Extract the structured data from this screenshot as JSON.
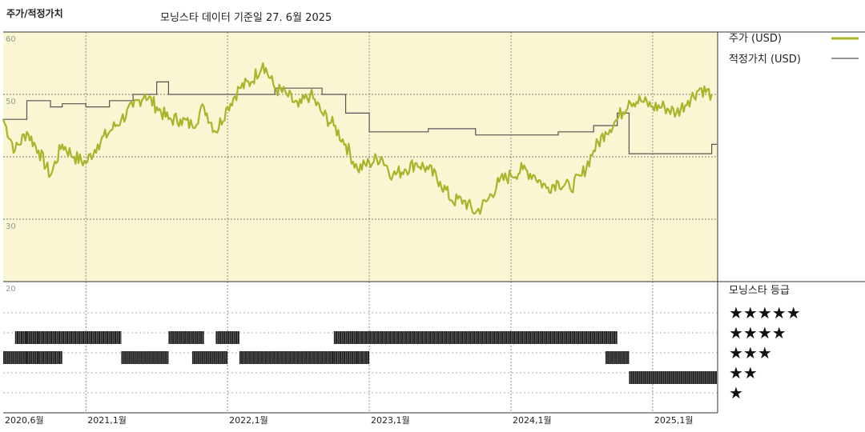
{
  "header": {
    "title": "주가/적정가치",
    "subtitle": "모닝스타 데이터 기준일 27. 6월 2025"
  },
  "legend": {
    "price_label": "주가 (USD)",
    "fair_label": "적정가치 (USD)",
    "rating_title": "모닝스타 등급",
    "stars": [
      "★★★★★",
      "★★★★",
      "★★★",
      "★★",
      "★"
    ]
  },
  "colors": {
    "price": "#a8b42a",
    "fair": "#555555",
    "plot_bg": "#faf5d2",
    "bars": "#222222"
  },
  "chart_data": [
    {
      "type": "line",
      "title": "주가/적정가치",
      "x_ticks": [
        "2020,6월",
        "2021,1월",
        "2022,1월",
        "2023,1월",
        "2024,1월",
        "2025,1월"
      ],
      "x_range": [
        "2020-06",
        "2025-06"
      ],
      "ylim": [
        20,
        60
      ],
      "y_ticks": [
        60,
        50,
        30,
        20
      ],
      "grid": true,
      "series": [
        {
          "name": "주가 (USD)",
          "points": [
            [
              "2020-06",
              46
            ],
            [
              "2020-07",
              41
            ],
            [
              "2020-08",
              44
            ],
            [
              "2020-09",
              41
            ],
            [
              "2020-10",
              37
            ],
            [
              "2020-11",
              42
            ],
            [
              "2020-12",
              40
            ],
            [
              "2021-01",
              39
            ],
            [
              "2021-02",
              42
            ],
            [
              "2021-03",
              44
            ],
            [
              "2021-04",
              46
            ],
            [
              "2021-05",
              48
            ],
            [
              "2021-06",
              50
            ],
            [
              "2021-07",
              48
            ],
            [
              "2021-08",
              46
            ],
            [
              "2021-09",
              46
            ],
            [
              "2021-10",
              45
            ],
            [
              "2021-11",
              48
            ],
            [
              "2021-12",
              44
            ],
            [
              "2022-01",
              48
            ],
            [
              "2022-02",
              51
            ],
            [
              "2022-03",
              52
            ],
            [
              "2022-04",
              55
            ],
            [
              "2022-05",
              51
            ],
            [
              "2022-06",
              50
            ],
            [
              "2022-07",
              48
            ],
            [
              "2022-08",
              50
            ],
            [
              "2022-09",
              47
            ],
            [
              "2022-10",
              45
            ],
            [
              "2022-11",
              42
            ],
            [
              "2022-12",
              38
            ],
            [
              "2023-01",
              39
            ],
            [
              "2023-02",
              40
            ],
            [
              "2023-03",
              37
            ],
            [
              "2023-04",
              38
            ],
            [
              "2023-05",
              39
            ],
            [
              "2023-06",
              38
            ],
            [
              "2023-07",
              36
            ],
            [
              "2023-08",
              33
            ],
            [
              "2023-09",
              33
            ],
            [
              "2023-10",
              31
            ],
            [
              "2023-11",
              33
            ],
            [
              "2023-12",
              36
            ],
            [
              "2024-01",
              37
            ],
            [
              "2024-02",
              38
            ],
            [
              "2024-03",
              37
            ],
            [
              "2024-04",
              35
            ],
            [
              "2024-05",
              36
            ],
            [
              "2024-06",
              35
            ],
            [
              "2024-07",
              37
            ],
            [
              "2024-08",
              41
            ],
            [
              "2024-09",
              44
            ],
            [
              "2024-10",
              46
            ],
            [
              "2024-11",
              49
            ],
            [
              "2024-12",
              49
            ],
            [
              "2025-01",
              48
            ],
            [
              "2025-02",
              48
            ],
            [
              "2025-03",
              47
            ],
            [
              "2025-04",
              49
            ],
            [
              "2025-05",
              51
            ],
            [
              "2025-06",
              50
            ]
          ]
        },
        {
          "name": "적정가치 (USD)",
          "step": true,
          "points": [
            [
              "2020-06",
              46
            ],
            [
              "2020-08",
              49
            ],
            [
              "2020-10",
              48
            ],
            [
              "2020-11",
              48.5
            ],
            [
              "2021-01",
              48
            ],
            [
              "2021-03",
              49
            ],
            [
              "2021-05",
              50
            ],
            [
              "2021-07",
              52
            ],
            [
              "2021-08",
              50
            ],
            [
              "2022-05",
              51
            ],
            [
              "2022-09",
              50
            ],
            [
              "2022-11",
              47
            ],
            [
              "2023-01",
              44
            ],
            [
              "2023-04",
              44
            ],
            [
              "2023-06",
              44.5
            ],
            [
              "2023-10",
              43.5
            ],
            [
              "2024-04",
              43.5
            ],
            [
              "2024-05",
              44
            ],
            [
              "2024-08",
              45
            ],
            [
              "2024-10",
              47
            ],
            [
              "2024-11",
              40.5
            ],
            [
              "2025-06",
              42
            ]
          ]
        }
      ]
    },
    {
      "type": "timeline",
      "title": "모닝스타 등급",
      "categories": [
        "★★★★★",
        "★★★★",
        "★★★",
        "★★",
        "★"
      ],
      "series": [
        {
          "name": "★★★★★",
          "periods": []
        },
        {
          "name": "★★★★",
          "periods": [
            [
              "2020-07",
              "2020-07"
            ],
            [
              "2020-08",
              "2020-08"
            ],
            [
              "2020-09",
              "2021-03"
            ],
            [
              "2021-08",
              "2021-10"
            ],
            [
              "2021-12",
              "2022-01"
            ],
            [
              "2022-10",
              "2022-11"
            ],
            [
              "2022-12",
              "2024-09"
            ]
          ]
        },
        {
          "name": "★★★",
          "periods": [
            [
              "2020-06",
              "2020-07"
            ],
            [
              "2020-08",
              "2020-08"
            ],
            [
              "2020-09",
              "2020-10"
            ],
            [
              "2021-04",
              "2021-07"
            ],
            [
              "2021-10",
              "2021-12"
            ],
            [
              "2022-02",
              "2022-09"
            ],
            [
              "2022-10",
              "2022-11"
            ],
            [
              "2022-12",
              "2022-12"
            ],
            [
              "2024-09",
              "2024-10"
            ]
          ]
        },
        {
          "name": "★★",
          "periods": [
            [
              "2024-11",
              "2025-06"
            ]
          ]
        },
        {
          "name": "★",
          "periods": []
        }
      ]
    }
  ]
}
